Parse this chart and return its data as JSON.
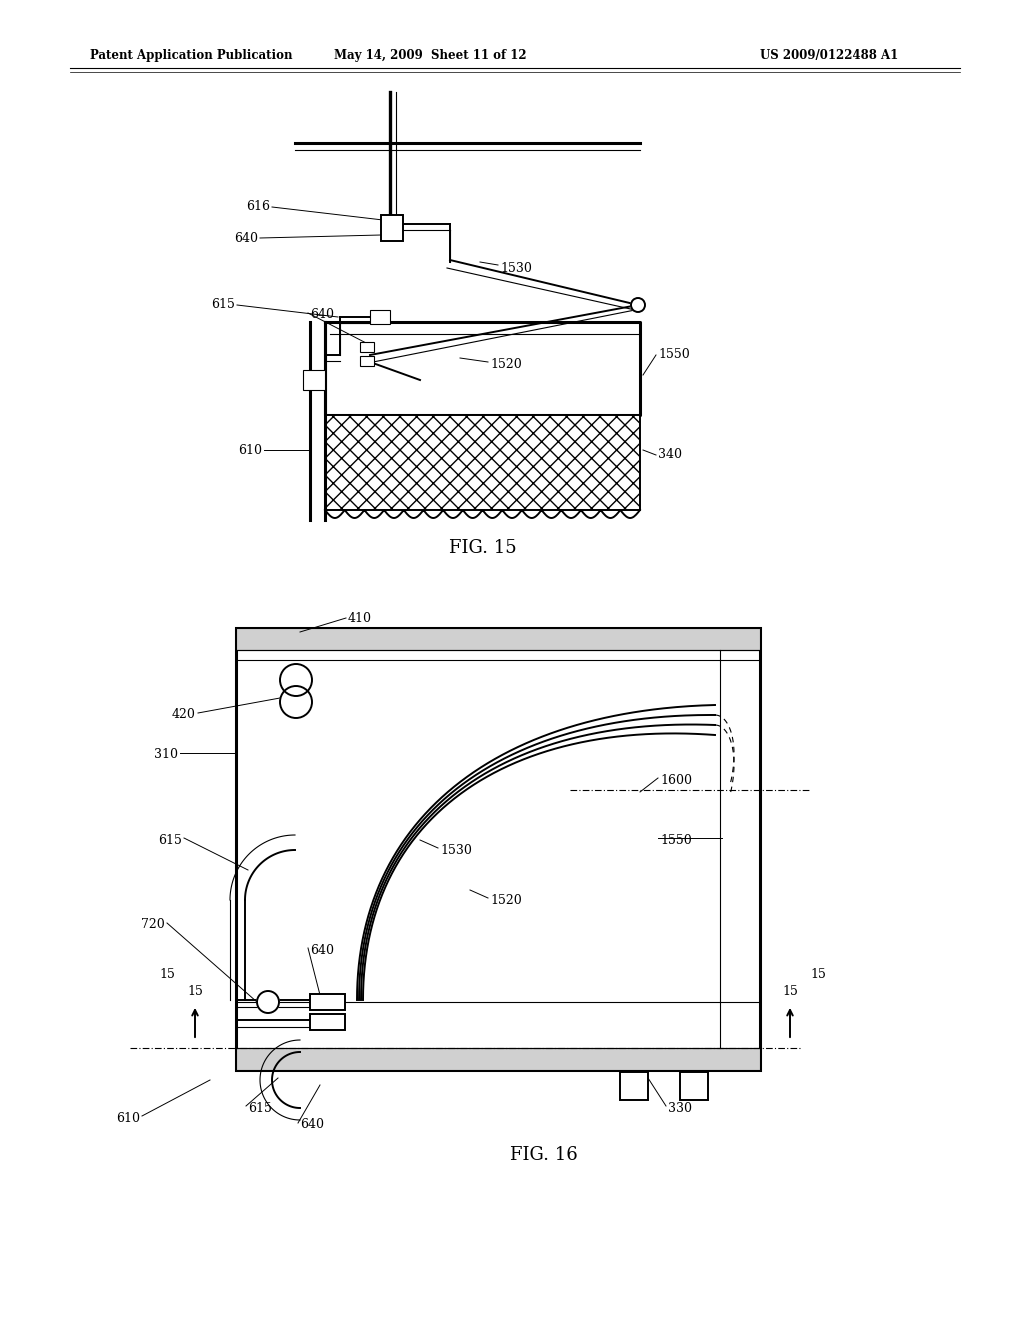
{
  "bg_color": "#ffffff",
  "line_color": "#000000",
  "header_text": "Patent Application Publication",
  "header_date": "May 14, 2009  Sheet 11 of 12",
  "header_patent": "US 2009/0122488 A1"
}
